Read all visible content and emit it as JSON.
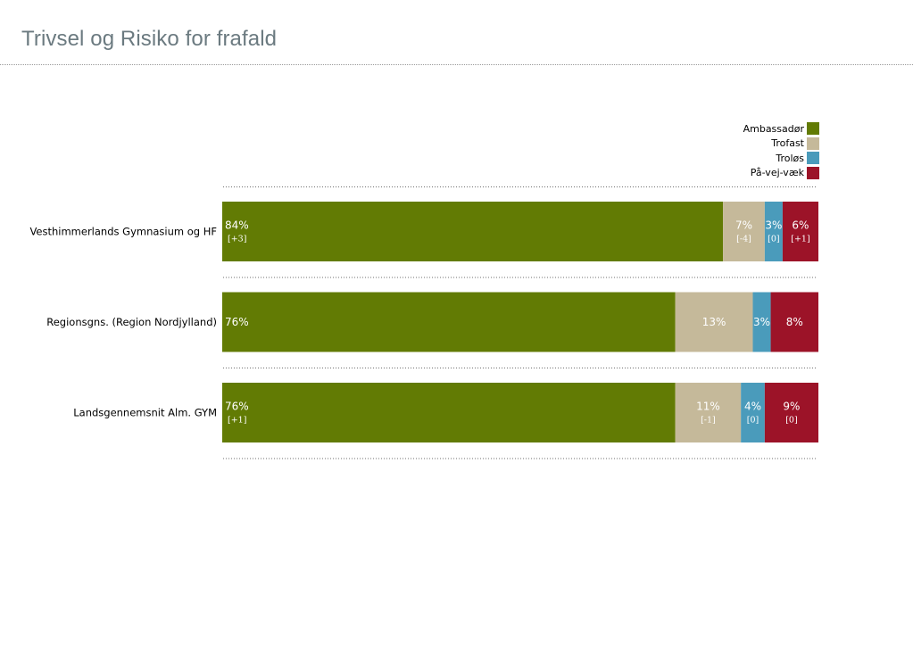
{
  "page": {
    "title": "Trivsel og Risiko for frafald"
  },
  "legend": [
    {
      "label": "Ambassadør",
      "color": "#627b04"
    },
    {
      "label": "Trofast",
      "color": "#c5b99a"
    },
    {
      "label": "Troløs",
      "color": "#4a9bbb"
    },
    {
      "label": "På-vej-væk",
      "color": "#9c1328"
    }
  ],
  "chart_data": {
    "type": "bar",
    "orientation": "horizontal",
    "stacked": true,
    "categories": [
      "Vesthimmerlands Gymnasium og HF",
      "Regionsgns. (Region Nordjylland)",
      "Landsgennemsnit Alm. GYM"
    ],
    "series": [
      {
        "name": "Ambassadør",
        "color": "#627b04",
        "values": [
          84,
          76,
          76
        ],
        "labels": [
          "84%",
          "76%",
          "76%"
        ],
        "changes": [
          "[+3]",
          "",
          "[+1]"
        ]
      },
      {
        "name": "Trofast",
        "color": "#c5b99a",
        "values": [
          7,
          13,
          11
        ],
        "labels": [
          "7%",
          "13%",
          "11%"
        ],
        "changes": [
          "[-4]",
          "",
          "[-1]"
        ]
      },
      {
        "name": "Troløs",
        "color": "#4a9bbb",
        "values": [
          3,
          3,
          4
        ],
        "labels": [
          "3%",
          "3%",
          "4%"
        ],
        "changes": [
          "[0]",
          "",
          "[0]"
        ]
      },
      {
        "name": "På-vej-væk",
        "color": "#9c1328",
        "values": [
          6,
          8,
          9
        ],
        "labels": [
          "6%",
          "8%",
          "9%"
        ],
        "changes": [
          "[+1]",
          "",
          "[0]"
        ]
      }
    ],
    "title": "Trivsel og Risiko for frafald",
    "xlabel": "",
    "ylabel": "",
    "legend_position": "top-right",
    "grid": false
  }
}
